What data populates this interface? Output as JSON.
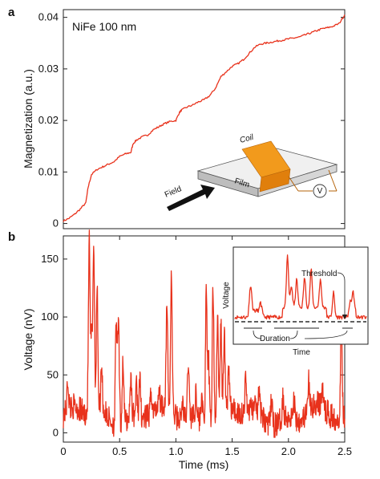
{
  "chart_data": [
    {
      "panel": "a",
      "type": "line",
      "annotation": "NiFe 100 nm",
      "ylabel": "Magnetization (a.u.)",
      "xlabel": "",
      "ylim": [
        -0.001,
        0.0415
      ],
      "yticks": [
        0,
        0.01,
        0.02,
        0.03,
        0.04
      ],
      "ytick_labels": [
        "0",
        "0.01",
        "0.02",
        "0.03",
        "0.04"
      ],
      "xlim": [
        0,
        2.5
      ],
      "color": "#e8321c",
      "x": [
        0,
        0.05,
        0.1,
        0.15,
        0.2,
        0.22,
        0.25,
        0.3,
        0.35,
        0.4,
        0.45,
        0.5,
        0.55,
        0.6,
        0.62,
        0.65,
        0.7,
        0.75,
        0.8,
        0.85,
        0.9,
        0.95,
        1.0,
        1.03,
        1.05,
        1.1,
        1.15,
        1.2,
        1.25,
        1.3,
        1.35,
        1.4,
        1.45,
        1.5,
        1.55,
        1.6,
        1.65,
        1.7,
        1.75,
        1.8,
        1.85,
        1.9,
        1.95,
        2.0,
        2.05,
        2.1,
        2.15,
        2.2,
        2.25,
        2.3,
        2.35,
        2.4,
        2.45,
        2.5
      ],
      "values": [
        0.0005,
        0.001,
        0.0018,
        0.0028,
        0.004,
        0.007,
        0.0095,
        0.0105,
        0.011,
        0.0115,
        0.012,
        0.013,
        0.0135,
        0.0138,
        0.0155,
        0.0162,
        0.0168,
        0.0172,
        0.0182,
        0.0188,
        0.0194,
        0.0198,
        0.02,
        0.0215,
        0.022,
        0.0226,
        0.023,
        0.0236,
        0.024,
        0.0248,
        0.0262,
        0.0285,
        0.0295,
        0.0305,
        0.031,
        0.0318,
        0.033,
        0.0342,
        0.0348,
        0.035,
        0.0352,
        0.0354,
        0.0356,
        0.0358,
        0.036,
        0.0362,
        0.0366,
        0.037,
        0.0374,
        0.0378,
        0.038,
        0.0383,
        0.0388,
        0.0405
      ]
    },
    {
      "panel": "b",
      "type": "line",
      "xlabel": "Time (ms)",
      "ylabel": "Voltage (nV)",
      "xlim": [
        0,
        2.5
      ],
      "ylim": [
        -8,
        170
      ],
      "xticks": [
        0,
        0.5,
        1,
        1.5,
        2,
        2.5
      ],
      "xtick_labels": [
        "0",
        "0.5",
        "1.0",
        "1.5",
        "2.0",
        "2.5"
      ],
      "yticks": [
        0,
        50,
        100,
        150
      ],
      "ytick_labels": [
        "0",
        "50",
        "100",
        "150"
      ],
      "color": "#e8321c",
      "baseline": 15,
      "peaks": [
        {
          "t": 0.04,
          "v": 40
        },
        {
          "t": 0.23,
          "v": 163
        },
        {
          "t": 0.25,
          "v": 80
        },
        {
          "t": 0.27,
          "v": 160
        },
        {
          "t": 0.3,
          "v": 120
        },
        {
          "t": 0.34,
          "v": 55
        },
        {
          "t": 0.47,
          "v": 105
        },
        {
          "t": 0.49,
          "v": 105
        },
        {
          "t": 0.53,
          "v": 70
        },
        {
          "t": 0.6,
          "v": 50
        },
        {
          "t": 0.65,
          "v": 40
        },
        {
          "t": 0.68,
          "v": 45
        },
        {
          "t": 0.78,
          "v": 35
        },
        {
          "t": 0.85,
          "v": 30
        },
        {
          "t": 0.92,
          "v": 100
        },
        {
          "t": 0.96,
          "v": 135
        },
        {
          "t": 1.06,
          "v": 30
        },
        {
          "t": 1.11,
          "v": 65
        },
        {
          "t": 1.18,
          "v": 40
        },
        {
          "t": 1.23,
          "v": 40
        },
        {
          "t": 1.27,
          "v": 128
        },
        {
          "t": 1.29,
          "v": 70
        },
        {
          "t": 1.33,
          "v": 132
        },
        {
          "t": 1.37,
          "v": 100
        },
        {
          "t": 1.4,
          "v": 90
        },
        {
          "t": 1.43,
          "v": 80
        },
        {
          "t": 1.47,
          "v": 50
        },
        {
          "t": 1.62,
          "v": 42
        },
        {
          "t": 1.74,
          "v": 30
        },
        {
          "t": 1.85,
          "v": 38
        },
        {
          "t": 1.95,
          "v": 35
        },
        {
          "t": 2.05,
          "v": 30
        },
        {
          "t": 2.18,
          "v": 40
        },
        {
          "t": 2.3,
          "v": 32
        },
        {
          "t": 2.47,
          "v": 90
        }
      ],
      "inset": {
        "xlabel": "Time",
        "ylabel": "Voltage",
        "threshold_label": "Threshold",
        "duration_label": "Duration",
        "threshold_level": 0.22
      }
    }
  ],
  "figure_labels": {
    "panel_a": "a",
    "panel_b": "b"
  },
  "diagram_labels": {
    "coil": "Coil",
    "film": "Film",
    "field": "Field",
    "voltmeter": "V"
  }
}
